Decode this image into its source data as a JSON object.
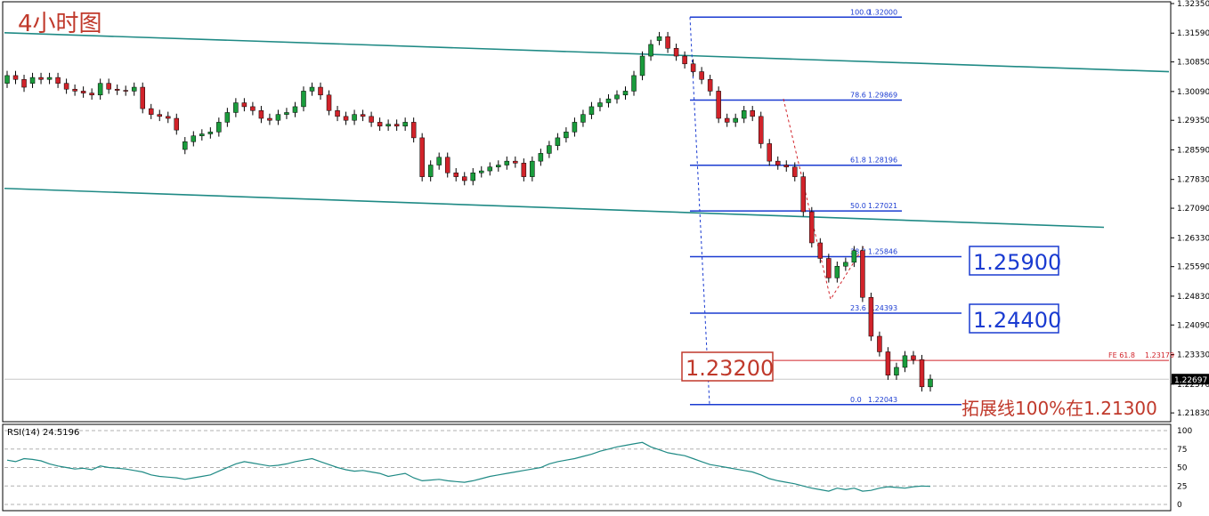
{
  "chart_data": [
    {
      "type": "candlestick",
      "title": "4小时图",
      "ylim": [
        1.2165,
        1.3235
      ],
      "y_ticks": [
        "1.32350",
        "1.31590",
        "1.30850",
        "1.30090",
        "1.29350",
        "1.28590",
        "1.27830",
        "1.27090",
        "1.26330",
        "1.25590",
        "1.24830",
        "1.24090",
        "1.23330",
        "1.22570",
        "1.21830"
      ],
      "current_price_label": "1.22697",
      "candles_close": [
        1.305,
        1.304,
        1.302,
        1.3045,
        1.304,
        1.3045,
        1.303,
        1.3015,
        1.301,
        1.3005,
        1.3,
        1.303,
        1.3015,
        1.3012,
        1.301,
        1.302,
        1.2965,
        1.295,
        1.2945,
        1.294,
        1.291,
        1.288,
        1.2895,
        1.29,
        1.2905,
        1.293,
        1.2955,
        1.298,
        1.297,
        1.296,
        1.294,
        1.2935,
        1.295,
        1.2955,
        1.297,
        1.301,
        1.302,
        1.3,
        1.296,
        1.2945,
        1.2935,
        1.295,
        1.2945,
        1.293,
        1.292,
        1.2925,
        1.292,
        1.293,
        1.289,
        1.279,
        1.282,
        1.284,
        1.28,
        1.279,
        1.278,
        1.28,
        1.2805,
        1.2815,
        1.282,
        1.283,
        1.2825,
        1.279,
        1.283,
        1.285,
        1.287,
        1.289,
        1.2905,
        1.293,
        1.295,
        1.297,
        1.298,
        1.299,
        1.3,
        1.301,
        1.305,
        1.31,
        1.313,
        1.315,
        1.312,
        1.31,
        1.308,
        1.306,
        1.304,
        1.301,
        1.294,
        1.293,
        1.294,
        1.296,
        1.2945,
        1.2875,
        1.283,
        1.282,
        1.2815,
        1.279,
        1.27,
        1.262,
        1.258,
        1.253,
        1.256,
        1.257,
        1.26,
        1.248,
        1.238,
        1.234,
        1.228,
        1.23,
        1.233,
        1.232,
        1.225,
        1.227
      ],
      "candles_open": [
        1.303,
        1.305,
        1.304,
        1.303,
        1.3045,
        1.304,
        1.3045,
        1.303,
        1.3015,
        1.301,
        1.3005,
        1.3,
        1.303,
        1.3015,
        1.3012,
        1.301,
        1.302,
        1.2965,
        1.295,
        1.2945,
        1.294,
        1.286,
        1.288,
        1.2895,
        1.29,
        1.2905,
        1.293,
        1.2955,
        1.298,
        1.297,
        1.296,
        1.294,
        1.2935,
        1.295,
        1.2955,
        1.297,
        1.301,
        1.302,
        1.3,
        1.296,
        1.2945,
        1.2935,
        1.295,
        1.2945,
        1.293,
        1.292,
        1.2925,
        1.292,
        1.293,
        1.289,
        1.279,
        1.282,
        1.284,
        1.28,
        1.279,
        1.278,
        1.28,
        1.2805,
        1.2815,
        1.282,
        1.283,
        1.2825,
        1.279,
        1.283,
        1.285,
        1.287,
        1.289,
        1.2905,
        1.293,
        1.295,
        1.297,
        1.298,
        1.299,
        1.3,
        1.301,
        1.305,
        1.31,
        1.314,
        1.315,
        1.312,
        1.31,
        1.308,
        1.306,
        1.304,
        1.301,
        1.294,
        1.293,
        1.294,
        1.296,
        1.2945,
        1.2875,
        1.283,
        1.282,
        1.2815,
        1.279,
        1.27,
        1.262,
        1.258,
        1.253,
        1.256,
        1.257,
        1.26,
        1.248,
        1.238,
        1.234,
        1.228,
        1.23,
        1.233,
        1.232,
        1.225
      ],
      "channel_lines": [
        {
          "from": [
            0,
            1.316
          ],
          "to": [
            1.306,
            1.306
          ]
        },
        {
          "from": [
            0,
            1.276
          ],
          "to": [
            1.266,
            1.266
          ]
        }
      ],
      "fibonacci_retracement": [
        {
          "ratio": "100.0",
          "price": "1.32000",
          "value": 1.32
        },
        {
          "ratio": "78.6",
          "price": "1.29869",
          "value": 1.29869
        },
        {
          "ratio": "61.8",
          "price": "1.28196",
          "value": 1.28196
        },
        {
          "ratio": "50.0",
          "price": "1.27021",
          "value": 1.27021
        },
        {
          "ratio": "38.2",
          "price": "1.25846",
          "value": 1.25846
        },
        {
          "ratio": "23.6",
          "price": "1.24393",
          "value": 1.24393
        },
        {
          "ratio": "0.0",
          "price": "1.22043",
          "value": 1.22043
        }
      ],
      "fe_line": {
        "label": "FE 61.8",
        "price": "1.23179",
        "value": 1.23179
      },
      "annotations": {
        "level_1": "1.25900",
        "level_2": "1.24400",
        "level_3": "1.23200",
        "extension_note": "拓展线100%在1.21300"
      }
    },
    {
      "type": "line",
      "title": "RSI(14) 24.5196",
      "ylim": [
        0,
        100
      ],
      "y_ticks": [
        "100",
        "75",
        "50",
        "25",
        "0"
      ],
      "reference_levels": [
        30,
        70
      ],
      "values": [
        60,
        58,
        62,
        61,
        59,
        55,
        52,
        50,
        48,
        49,
        47,
        52,
        50,
        49,
        48,
        46,
        44,
        40,
        38,
        37,
        36,
        34,
        36,
        38,
        40,
        45,
        50,
        55,
        58,
        56,
        54,
        52,
        53,
        55,
        58,
        60,
        62,
        58,
        54,
        50,
        47,
        45,
        46,
        44,
        42,
        38,
        40,
        42,
        36,
        32,
        33,
        34,
        32,
        31,
        30,
        32,
        35,
        38,
        40,
        42,
        44,
        46,
        48,
        50,
        55,
        58,
        60,
        62,
        65,
        68,
        72,
        75,
        78,
        80,
        82,
        84,
        78,
        74,
        70,
        68,
        66,
        62,
        58,
        54,
        52,
        50,
        48,
        46,
        44,
        40,
        35,
        32,
        30,
        28,
        25,
        22,
        20,
        18,
        22,
        20,
        22,
        18,
        19,
        22,
        24,
        23,
        22,
        24,
        25,
        24.5
      ]
    }
  ]
}
